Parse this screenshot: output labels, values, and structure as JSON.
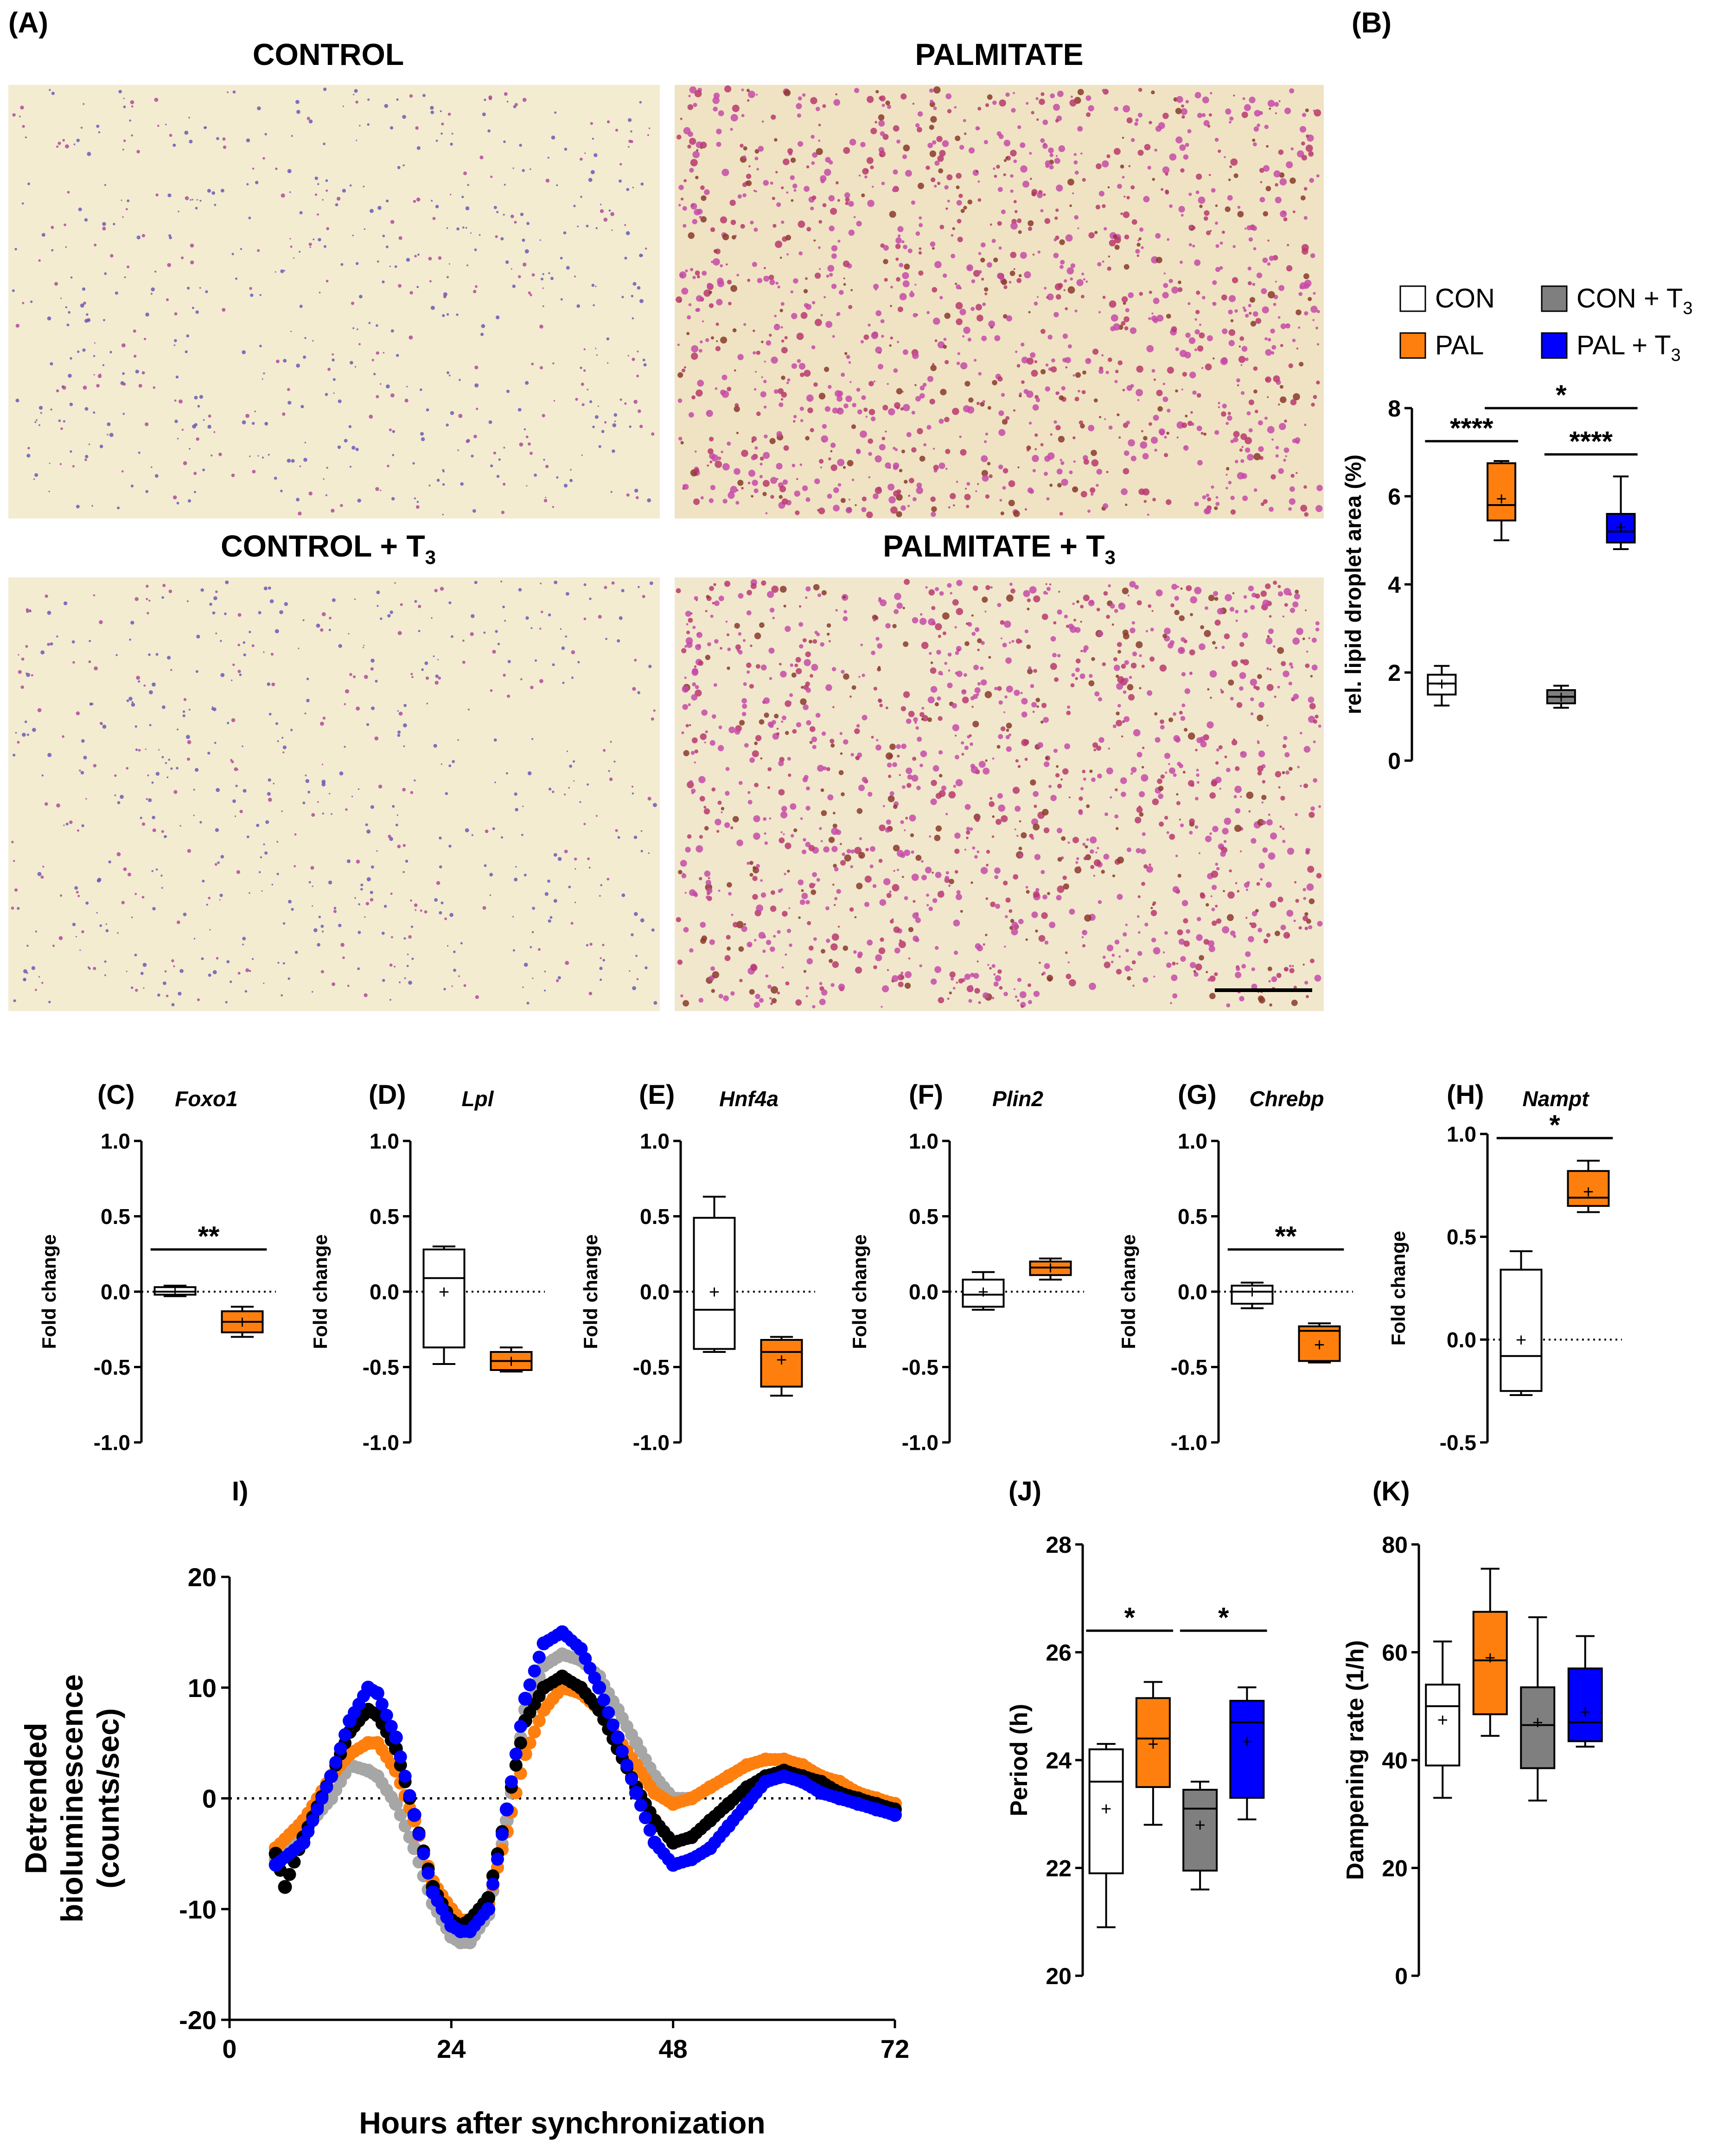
{
  "figure": {
    "panels": {
      "A": {
        "letter": "(A)",
        "images": [
          {
            "title": "CONTROL",
            "stain_density": "low"
          },
          {
            "title": "PALMITATE",
            "stain_density": "high"
          },
          {
            "title": "CONTROL + T",
            "subscript": "3",
            "stain_density": "low"
          },
          {
            "title": "PALMITATE +  T",
            "subscript": "3",
            "stain_density": "high"
          }
        ]
      },
      "B": {
        "letter": "(B)"
      },
      "C": {
        "letter": "(C)"
      },
      "D": {
        "letter": "(D)"
      },
      "E": {
        "letter": "(E)"
      },
      "F": {
        "letter": "(F)"
      },
      "G": {
        "letter": "(G)"
      },
      "H": {
        "letter": "(H)"
      },
      "I": {
        "letter": "I)"
      },
      "J": {
        "letter": "(J)"
      },
      "K": {
        "letter": "(K)"
      }
    },
    "legend": [
      {
        "label": "CON",
        "color": "#ffffff"
      },
      {
        "label": "CON + T",
        "sub": "3",
        "color": "#7f7f7f"
      },
      {
        "label": "PAL",
        "color": "#ff7f0e"
      },
      {
        "label": "PAL + T",
        "sub": "3",
        "color": "#0000ff"
      }
    ],
    "colors": {
      "con": "#ffffff",
      "pal": "#ff7f0e",
      "con_t3": "#7f7f7f",
      "pal_t3": "#0000ff",
      "con_t3_trace": "#a6a6a6",
      "pal_t3_trace": "#000000"
    }
  },
  "chart_data": [
    {
      "id": "B",
      "type": "box",
      "title": "",
      "ylabel": "rel. lipid droplet area (%)",
      "ylim": [
        0,
        8
      ],
      "yticks": [
        0,
        2,
        4,
        6,
        8
      ],
      "groups": [
        {
          "name": "CON",
          "min": 1.25,
          "q1": 1.5,
          "median": 1.75,
          "q3": 1.95,
          "max": 2.15,
          "mean": 1.75
        },
        {
          "name": "PAL",
          "min": 5.0,
          "q1": 5.45,
          "median": 5.8,
          "q3": 6.75,
          "max": 6.8,
          "mean": 5.95
        },
        {
          "name": "CON + T3",
          "min": 1.2,
          "q1": 1.3,
          "median": 1.45,
          "q3": 1.6,
          "max": 1.7,
          "mean": 1.45
        },
        {
          "name": "PAL + T3",
          "min": 4.8,
          "q1": 4.95,
          "median": 5.2,
          "q3": 5.6,
          "max": 6.45,
          "mean": 5.3
        }
      ],
      "significance": [
        {
          "from": 0,
          "to": 1,
          "y": 7.25,
          "label": "****"
        },
        {
          "from": 1,
          "to": 3,
          "y": 8.0,
          "label": "*"
        },
        {
          "from": 2,
          "to": 3,
          "y": 6.95,
          "label": "****"
        }
      ]
    },
    {
      "id": "C",
      "type": "box",
      "title": "Foxo1",
      "ylabel": "Fold change",
      "ylim": [
        -1,
        1
      ],
      "yticks": [
        -1,
        -0.5,
        0,
        0.5,
        1
      ],
      "ytick_labels": [
        "-1.0",
        "-0.5",
        "0.0",
        "0.5",
        "1.0"
      ],
      "groups": [
        {
          "name": "CON",
          "min": -0.03,
          "q1": -0.02,
          "median": 0.0,
          "q3": 0.03,
          "max": 0.04,
          "mean": 0.0
        },
        {
          "name": "PAL",
          "min": -0.3,
          "q1": -0.27,
          "median": -0.2,
          "q3": -0.13,
          "max": -0.1,
          "mean": -0.2
        }
      ],
      "significance": [
        {
          "from": 0,
          "to": 1,
          "y": 0.28,
          "label": "**"
        }
      ]
    },
    {
      "id": "D",
      "type": "box",
      "title": "Lpl",
      "ylabel": "Fold change",
      "ylim": [
        -1,
        1
      ],
      "yticks": [
        -1,
        -0.5,
        0,
        0.5,
        1
      ],
      "ytick_labels": [
        "-1.0",
        "-0.5",
        "0.0",
        "0.5",
        "1.0"
      ],
      "groups": [
        {
          "name": "CON",
          "min": -0.48,
          "q1": -0.37,
          "median": 0.09,
          "q3": 0.28,
          "max": 0.3,
          "mean": 0.0
        },
        {
          "name": "PAL",
          "min": -0.53,
          "q1": -0.52,
          "median": -0.46,
          "q3": -0.4,
          "max": -0.37,
          "mean": -0.46
        }
      ],
      "significance": []
    },
    {
      "id": "E",
      "type": "box",
      "title": "Hnf4a",
      "ylabel": "Fold change",
      "ylim": [
        -1,
        1
      ],
      "yticks": [
        -1,
        -0.5,
        0,
        0.5,
        1
      ],
      "ytick_labels": [
        "-1.0",
        "-0.5",
        "0.0",
        "0.5",
        "1.0"
      ],
      "groups": [
        {
          "name": "CON",
          "min": -0.4,
          "q1": -0.38,
          "median": -0.12,
          "q3": 0.49,
          "max": 0.63,
          "mean": 0.0
        },
        {
          "name": "PAL",
          "min": -0.69,
          "q1": -0.63,
          "median": -0.4,
          "q3": -0.32,
          "max": -0.3,
          "mean": -0.45
        }
      ],
      "significance": []
    },
    {
      "id": "F",
      "type": "box",
      "title": "Plin2",
      "ylabel": "Fold change",
      "ylim": [
        -1,
        1
      ],
      "yticks": [
        -1,
        -0.5,
        0,
        0.5,
        1
      ],
      "ytick_labels": [
        "-1.0",
        "-0.5",
        "0.0",
        "0.5",
        "1.0"
      ],
      "groups": [
        {
          "name": "CON",
          "min": -0.12,
          "q1": -0.1,
          "median": -0.02,
          "q3": 0.08,
          "max": 0.13,
          "mean": 0.0
        },
        {
          "name": "PAL",
          "min": 0.08,
          "q1": 0.11,
          "median": 0.16,
          "q3": 0.2,
          "max": 0.22,
          "mean": 0.16
        }
      ],
      "significance": []
    },
    {
      "id": "G",
      "type": "box",
      "title": "Chrebp",
      "ylabel": "Fold change",
      "ylim": [
        -1,
        1
      ],
      "yticks": [
        -1,
        -0.5,
        0,
        0.5,
        1
      ],
      "ytick_labels": [
        "-1.0",
        "-0.5",
        "0.0",
        "0.5",
        "1.0"
      ],
      "groups": [
        {
          "name": "CON",
          "min": -0.11,
          "q1": -0.08,
          "median": 0.0,
          "q3": 0.04,
          "max": 0.06,
          "mean": 0.0
        },
        {
          "name": "PAL",
          "min": -0.47,
          "q1": -0.46,
          "median": -0.26,
          "q3": -0.23,
          "max": -0.21,
          "mean": -0.35
        }
      ],
      "significance": [
        {
          "from": 0,
          "to": 1,
          "y": 0.28,
          "label": "**"
        }
      ]
    },
    {
      "id": "H",
      "type": "box",
      "title": "Nampt",
      "ylabel": "Fold change",
      "ylim": [
        -0.5,
        1
      ],
      "yticks": [
        -0.5,
        0,
        0.5,
        1
      ],
      "ytick_labels": [
        "-0.5",
        "0.0",
        "0.5",
        "1.0"
      ],
      "groups": [
        {
          "name": "CON",
          "min": -0.27,
          "q1": -0.25,
          "median": -0.08,
          "q3": 0.34,
          "max": 0.43,
          "mean": 0.0
        },
        {
          "name": "PAL",
          "min": 0.62,
          "q1": 0.65,
          "median": 0.69,
          "q3": 0.82,
          "max": 0.87,
          "mean": 0.72
        }
      ],
      "significance": [
        {
          "from": 0,
          "to": 1,
          "y": 0.98,
          "label": "*"
        }
      ]
    },
    {
      "id": "I",
      "type": "scatter",
      "title": "",
      "xlabel": "Hours after synchronization",
      "ylabel": "Detrended bioluminescence (counts/sec)",
      "ylabel_lines": [
        "Detrended",
        "bioluminescence",
        "(counts/sec)"
      ],
      "xlim": [
        0,
        72
      ],
      "ylim": [
        -20,
        20
      ],
      "xticks": [
        0,
        24,
        48,
        72
      ],
      "yticks": [
        -20,
        -10,
        0,
        10,
        20
      ],
      "reference_line": 0,
      "x_range": [
        5,
        72
      ],
      "series": [
        {
          "name": "CON",
          "color": "#a6a6a6",
          "x": [
            5,
            8,
            11,
            13,
            15,
            16,
            18,
            20,
            22,
            24,
            25,
            26,
            28,
            30,
            32,
            34,
            36,
            38,
            40,
            42,
            44,
            46,
            48,
            50,
            52,
            54,
            56,
            58,
            60,
            62,
            64,
            66,
            68,
            70,
            72
          ],
          "y": [
            -5.5,
            -3,
            0,
            3,
            2.5,
            2,
            -0.5,
            -4.5,
            -9.5,
            -12.5,
            -13,
            -13,
            -10.5,
            -2,
            8,
            12,
            13,
            12.5,
            11,
            8,
            5,
            2,
            0,
            0,
            1,
            2,
            3,
            3.5,
            3.5,
            3,
            2,
            1.5,
            0.5,
            0,
            -0.5
          ]
        },
        {
          "name": "PAL",
          "color": "#ff7f0e",
          "x": [
            5,
            8,
            11,
            13,
            15,
            16,
            18,
            20,
            22,
            24,
            25,
            26,
            28,
            30,
            32,
            34,
            36,
            38,
            40,
            42,
            44,
            46,
            48,
            50,
            52,
            54,
            56,
            58,
            60,
            62,
            64,
            66,
            68,
            70,
            72
          ],
          "y": [
            -4.5,
            -2,
            2,
            4,
            5,
            5,
            2.5,
            -2,
            -7.5,
            -10,
            -11,
            -11,
            -9.5,
            -3,
            4,
            8,
            10,
            9.5,
            8,
            5.5,
            3,
            0.5,
            -0.5,
            0,
            1,
            2,
            3,
            3.5,
            3.5,
            3,
            2,
            1.5,
            0.5,
            0,
            -0.5
          ]
        },
        {
          "name": "CON + T3",
          "color": "#000000",
          "x": [
            5,
            6,
            8,
            11,
            13,
            15,
            16,
            18,
            20,
            22,
            24,
            25,
            26,
            28,
            30,
            32,
            34,
            36,
            38,
            40,
            42,
            44,
            46,
            48,
            50,
            52,
            54,
            56,
            58,
            60,
            62,
            64,
            66,
            68,
            70,
            72
          ],
          "y": [
            -5,
            -8,
            -3.5,
            2,
            6,
            8,
            7.5,
            4.5,
            -1.5,
            -8,
            -11,
            -11.5,
            -11,
            -9,
            -1,
            7,
            10,
            11,
            10,
            8,
            4.5,
            1,
            -2,
            -4,
            -3.5,
            -2,
            -0.5,
            1,
            2,
            2.5,
            2,
            1.5,
            0.5,
            0,
            -0.5,
            -1
          ]
        },
        {
          "name": "PAL + T3",
          "color": "#0000ff",
          "x": [
            5,
            8,
            11,
            13,
            15,
            16,
            18,
            20,
            22,
            24,
            25,
            26,
            28,
            30,
            32,
            34,
            36,
            38,
            40,
            42,
            44,
            46,
            48,
            50,
            52,
            54,
            56,
            58,
            60,
            62,
            64,
            66,
            68,
            70,
            72
          ],
          "y": [
            -6,
            -4,
            2,
            7,
            10,
            9.5,
            5.5,
            -1.5,
            -8.5,
            -11.5,
            -12,
            -12,
            -10,
            -1,
            9,
            14,
            15,
            13.5,
            10,
            5.5,
            0.5,
            -4,
            -6,
            -5.5,
            -4.5,
            -2.5,
            -0.5,
            1.5,
            2,
            1.5,
            0.5,
            0,
            -0.5,
            -1,
            -1.5
          ]
        }
      ]
    },
    {
      "id": "J",
      "type": "box",
      "title": "",
      "ylabel": "Period (h)",
      "ylim": [
        20,
        28
      ],
      "yticks": [
        20,
        22,
        24,
        26,
        28
      ],
      "groups": [
        {
          "name": "CON",
          "min": 20.9,
          "q1": 21.9,
          "median": 23.6,
          "q3": 24.2,
          "max": 24.3,
          "mean": 23.1
        },
        {
          "name": "PAL",
          "min": 22.8,
          "q1": 23.5,
          "median": 24.4,
          "q3": 25.15,
          "max": 25.45,
          "mean": 24.3
        },
        {
          "name": "CON + T3",
          "min": 21.6,
          "q1": 21.95,
          "median": 23.1,
          "q3": 23.45,
          "max": 23.6,
          "mean": 22.8
        },
        {
          "name": "PAL + T3",
          "min": 22.9,
          "q1": 23.3,
          "median": 24.7,
          "q3": 25.1,
          "max": 25.35,
          "mean": 24.35
        }
      ],
      "significance": [
        {
          "from": 0,
          "to": 1,
          "y": 26.4,
          "label": "*"
        },
        {
          "from": 2,
          "to": 3,
          "y": 26.4,
          "label": "*"
        }
      ]
    },
    {
      "id": "K",
      "type": "box",
      "title": "",
      "ylabel": "Dampening rate (1/h)",
      "ylim": [
        0,
        80
      ],
      "yticks": [
        0,
        20,
        40,
        60,
        80
      ],
      "groups": [
        {
          "name": "CON",
          "min": 33,
          "q1": 39,
          "median": 50,
          "q3": 54,
          "max": 62,
          "mean": 47.5
        },
        {
          "name": "PAL",
          "min": 44.5,
          "q1": 48.5,
          "median": 58.5,
          "q3": 67.5,
          "max": 75.5,
          "mean": 59
        },
        {
          "name": "CON + T3",
          "min": 32.5,
          "q1": 38.5,
          "median": 46.5,
          "q3": 53.5,
          "max": 66.5,
          "mean": 47
        },
        {
          "name": "PAL + T3",
          "min": 42.5,
          "q1": 43.5,
          "median": 47,
          "q3": 57,
          "max": 63,
          "mean": 49
        }
      ],
      "significance": []
    }
  ]
}
